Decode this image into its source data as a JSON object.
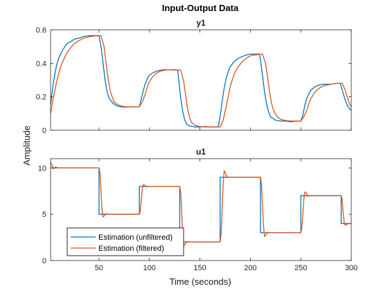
{
  "chart_data": [
    {
      "type": "line",
      "title": "y1",
      "xlim": [
        2,
        300
      ],
      "ylim": [
        0,
        0.6
      ],
      "xticks": [
        50,
        100,
        150,
        200,
        250,
        300
      ],
      "yticks": [
        "0",
        "0.2",
        "0.4",
        "0.6"
      ],
      "ytick_values": [
        0,
        0.2,
        0.4,
        0.6
      ],
      "show_xtick_labels": false,
      "grid": false,
      "series": [
        {
          "name": "Estimation (unfiltered)",
          "color": "#0072BD",
          "x": [
            2,
            4,
            6,
            8,
            10,
            14,
            18,
            22,
            26,
            30,
            35,
            40,
            45,
            50,
            52,
            54,
            56,
            58,
            60,
            64,
            68,
            72,
            76,
            80,
            85,
            88,
            90,
            92,
            94,
            96,
            98,
            100,
            104,
            108,
            112,
            116,
            120,
            124,
            128,
            129,
            131,
            133,
            135,
            137,
            140,
            145,
            150,
            155,
            160,
            165,
            168,
            170,
            172,
            174,
            176,
            178,
            180,
            184,
            188,
            192,
            196,
            200,
            205,
            209,
            210,
            212,
            214,
            216,
            218,
            220,
            225,
            230,
            235,
            240,
            245,
            248,
            250,
            252,
            254,
            256,
            258,
            260,
            264,
            268,
            272,
            276,
            280,
            285,
            289,
            290,
            292,
            294,
            296,
            298,
            300
          ],
          "y": [
            0.15,
            0.25,
            0.33,
            0.39,
            0.43,
            0.48,
            0.515,
            0.53,
            0.545,
            0.55,
            0.56,
            0.565,
            0.565,
            0.565,
            0.5,
            0.4,
            0.3,
            0.23,
            0.19,
            0.16,
            0.145,
            0.14,
            0.138,
            0.14,
            0.14,
            0.14,
            0.14,
            0.19,
            0.24,
            0.28,
            0.31,
            0.33,
            0.345,
            0.355,
            0.36,
            0.362,
            0.36,
            0.362,
            0.36,
            0.3,
            0.19,
            0.11,
            0.06,
            0.035,
            0.025,
            0.02,
            0.02,
            0.022,
            0.02,
            0.02,
            0.02,
            0.08,
            0.17,
            0.25,
            0.31,
            0.35,
            0.38,
            0.41,
            0.43,
            0.44,
            0.45,
            0.455,
            0.455,
            0.455,
            0.42,
            0.33,
            0.23,
            0.16,
            0.11,
            0.08,
            0.06,
            0.055,
            0.055,
            0.05,
            0.055,
            0.055,
            0.055,
            0.09,
            0.15,
            0.19,
            0.22,
            0.24,
            0.26,
            0.27,
            0.275,
            0.275,
            0.275,
            0.28,
            0.28,
            0.26,
            0.22,
            0.18,
            0.15,
            0.13,
            0.12
          ]
        },
        {
          "name": "Estimation (filtered)",
          "color": "#D95319",
          "x": [
            2,
            5,
            8,
            11,
            14,
            18,
            22,
            26,
            30,
            35,
            40,
            45,
            52,
            55,
            57,
            59,
            61,
            63,
            65,
            68,
            72,
            76,
            80,
            85,
            90,
            93,
            96,
            98,
            100,
            102,
            105,
            108,
            112,
            116,
            120,
            124,
            131,
            134,
            136,
            138,
            140,
            142,
            145,
            150,
            155,
            160,
            165,
            170,
            173,
            176,
            178,
            180,
            182,
            185,
            188,
            192,
            196,
            200,
            205,
            212,
            215,
            217,
            219,
            221,
            223,
            226,
            230,
            235,
            240,
            245,
            250,
            253,
            256,
            258,
            260,
            262,
            265,
            268,
            272,
            276,
            280,
            285,
            291,
            294,
            296,
            298,
            300
          ],
          "y": [
            0.1,
            0.2,
            0.29,
            0.36,
            0.41,
            0.46,
            0.495,
            0.52,
            0.535,
            0.55,
            0.558,
            0.563,
            0.565,
            0.5,
            0.4,
            0.31,
            0.24,
            0.2,
            0.17,
            0.155,
            0.145,
            0.14,
            0.14,
            0.14,
            0.14,
            0.17,
            0.22,
            0.26,
            0.29,
            0.31,
            0.33,
            0.345,
            0.355,
            0.36,
            0.36,
            0.36,
            0.36,
            0.29,
            0.2,
            0.12,
            0.07,
            0.045,
            0.03,
            0.022,
            0.02,
            0.02,
            0.02,
            0.02,
            0.06,
            0.14,
            0.2,
            0.26,
            0.3,
            0.35,
            0.38,
            0.41,
            0.43,
            0.445,
            0.45,
            0.455,
            0.4,
            0.32,
            0.23,
            0.16,
            0.12,
            0.085,
            0.065,
            0.058,
            0.055,
            0.055,
            0.055,
            0.08,
            0.12,
            0.16,
            0.19,
            0.21,
            0.235,
            0.25,
            0.265,
            0.27,
            0.275,
            0.28,
            0.28,
            0.24,
            0.2,
            0.16,
            0.14
          ]
        }
      ]
    },
    {
      "type": "line",
      "title": "u1",
      "xlim": [
        2,
        300
      ],
      "ylim": [
        0,
        11
      ],
      "xticks": [
        50,
        100,
        150,
        200,
        250,
        300
      ],
      "yticks": [
        "0",
        "5",
        "10"
      ],
      "ytick_values": [
        0,
        5,
        10
      ],
      "show_xtick_labels": true,
      "xticklabels": [
        "50",
        "100",
        "150",
        "200",
        "250",
        "300"
      ],
      "grid": false,
      "series": [
        {
          "name": "Estimation (unfiltered)",
          "color": "#0072BD",
          "x": [
            2,
            50,
            50,
            90,
            90,
            130,
            130,
            170,
            170,
            210,
            210,
            250,
            250,
            290,
            290,
            300
          ],
          "y": [
            10,
            10,
            5,
            5,
            8,
            8,
            2,
            2,
            9,
            9,
            3,
            3,
            7,
            7,
            4,
            4
          ]
        },
        {
          "name": "Estimation (filtered)",
          "color": "#D95319",
          "x": [
            2,
            3,
            5,
            7,
            9,
            50,
            51,
            52,
            53,
            54,
            55,
            57,
            60,
            90,
            91,
            92,
            93,
            94,
            95,
            97,
            100,
            130,
            131,
            132,
            133,
            134,
            135,
            137,
            140,
            170,
            171,
            172,
            173,
            174,
            175,
            177,
            180,
            210,
            211,
            212,
            213,
            214,
            215,
            217,
            220,
            250,
            251,
            252,
            253,
            254,
            255,
            257,
            260,
            290,
            291,
            292,
            293,
            294,
            295,
            297,
            300
          ],
          "y": [
            10.6,
            10.4,
            9.9,
            10.1,
            10,
            10,
            9.4,
            7.5,
            5.5,
            4.7,
            4.8,
            5.05,
            5,
            5,
            5.4,
            6.6,
            7.8,
            8.2,
            8.15,
            7.95,
            8,
            8,
            7.3,
            5,
            2.8,
            1.6,
            1.7,
            2.05,
            2,
            2,
            2.8,
            5.5,
            8.2,
            9.7,
            9.5,
            8.95,
            9,
            9,
            8.3,
            6,
            3.8,
            2.6,
            2.7,
            3.05,
            3,
            3,
            3.5,
            5,
            6.6,
            7.4,
            7.35,
            6.95,
            7,
            7,
            6.6,
            5.1,
            4.1,
            3.8,
            3.85,
            4,
            4
          ]
        }
      ]
    }
  ],
  "figure": {
    "title": "Input-Output Data",
    "xlabel": "Time (seconds)",
    "ylabel": "Amplitude"
  },
  "legend": {
    "placement": "bottom-left of lower axes",
    "entries": [
      "Estimation (unfiltered)",
      "Estimation (filtered)"
    ]
  }
}
